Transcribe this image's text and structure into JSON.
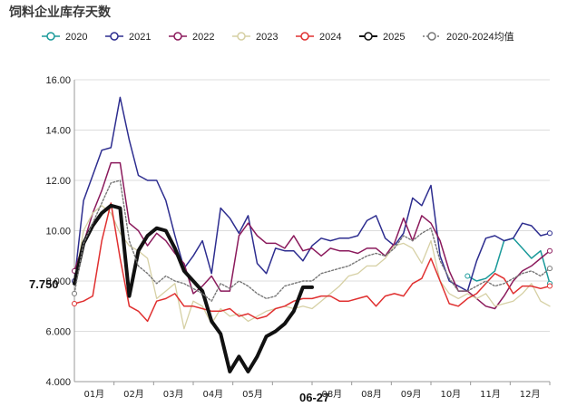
{
  "chart_data": {
    "type": "line",
    "title": "饲料企业库存天数",
    "ylim": [
      4.0,
      16.0
    ],
    "yticks": [
      "4.000",
      "6.000",
      "8.000",
      "10.00",
      "12.00",
      "14.00",
      "16.00"
    ],
    "xticks": [
      "01月",
      "02月",
      "03月",
      "04月",
      "05月",
      "",
      "08月",
      "08月",
      "09月",
      "10月",
      "11月",
      "12月"
    ],
    "xlim": [
      0,
      52
    ],
    "grid": "horizontal",
    "legend_position": "top",
    "last_value_label": "7.750",
    "date_label": "06-27",
    "series": [
      {
        "name": "2020",
        "color": "#1a9a9a",
        "width": 1.5,
        "dash": "",
        "marker": true,
        "x": [
          43,
          44,
          45,
          46,
          47,
          48,
          49,
          50,
          51,
          52
        ],
        "y": [
          8.2,
          8.0,
          8.1,
          8.4,
          9.6,
          9.7,
          9.3,
          8.9,
          9.2,
          7.9
        ]
      },
      {
        "name": "2021",
        "color": "#2d2d8f",
        "width": 1.5,
        "dash": "",
        "marker": true,
        "x": [
          0,
          1,
          2,
          3,
          4,
          5,
          6,
          7,
          8,
          9,
          10,
          11,
          12,
          13,
          14,
          15,
          16,
          17,
          18,
          19,
          20,
          21,
          22,
          23,
          24,
          25,
          26,
          27,
          28,
          29,
          30,
          31,
          32,
          33,
          34,
          35,
          36,
          37,
          38,
          39,
          40,
          41,
          42,
          43,
          44,
          45,
          46,
          47,
          48,
          49,
          50,
          51,
          52
        ],
        "y": [
          8.0,
          11.2,
          12.2,
          13.2,
          13.3,
          15.3,
          13.6,
          12.2,
          12.0,
          12.0,
          11.2,
          9.8,
          8.5,
          9.0,
          9.6,
          8.3,
          10.9,
          10.5,
          9.9,
          10.6,
          8.7,
          8.3,
          9.3,
          9.2,
          9.2,
          8.8,
          9.4,
          9.7,
          9.6,
          9.7,
          9.7,
          9.8,
          10.4,
          10.6,
          9.7,
          9.4,
          9.9,
          11.3,
          11.0,
          11.8,
          9.0,
          8.0,
          7.8,
          7.6,
          8.8,
          9.7,
          9.8,
          9.6,
          9.7,
          10.3,
          10.2,
          9.8,
          9.9
        ]
      },
      {
        "name": "2022",
        "color": "#8b1a5c",
        "width": 1.5,
        "dash": "",
        "marker": true,
        "x": [
          0,
          1,
          2,
          3,
          4,
          5,
          6,
          7,
          8,
          9,
          10,
          11,
          12,
          13,
          14,
          15,
          16,
          17,
          18,
          19,
          20,
          21,
          22,
          23,
          24,
          25,
          26,
          27,
          28,
          29,
          30,
          31,
          32,
          33,
          34,
          35,
          36,
          37,
          38,
          39,
          40,
          41,
          42,
          43,
          44,
          45,
          46,
          47,
          48,
          49,
          50,
          51,
          52
        ],
        "y": [
          8.4,
          9.5,
          10.7,
          11.6,
          12.7,
          12.7,
          10.3,
          10.0,
          9.4,
          9.9,
          9.6,
          9.1,
          8.7,
          7.5,
          7.8,
          8.2,
          7.6,
          7.6,
          9.8,
          10.3,
          9.8,
          9.5,
          9.5,
          9.3,
          9.8,
          9.2,
          9.3,
          9.0,
          9.3,
          9.2,
          9.2,
          9.1,
          9.3,
          9.3,
          9.0,
          9.5,
          10.5,
          9.6,
          10.6,
          10.3,
          9.6,
          8.4,
          7.6,
          7.6,
          7.3,
          7.0,
          6.9,
          7.4,
          8.0,
          8.4,
          8.6,
          8.9,
          9.2
        ]
      },
      {
        "name": "2023",
        "color": "#d6d0a4",
        "width": 1.3,
        "dash": "",
        "marker": false,
        "x": [
          0,
          1,
          2,
          3,
          4,
          5,
          6,
          7,
          8,
          9,
          10,
          11,
          12,
          13,
          14,
          15,
          16,
          17,
          18,
          19,
          20,
          21,
          22,
          23,
          24,
          25,
          26,
          27,
          28,
          29,
          30,
          31,
          32,
          33,
          34,
          35,
          36,
          37,
          38,
          39,
          40,
          41,
          42,
          43,
          44,
          45,
          46,
          47,
          48,
          49,
          50,
          51,
          52
        ],
        "y": [
          7.9,
          10.0,
          10.7,
          11.0,
          10.7,
          9.9,
          9.4,
          9.2,
          8.9,
          7.3,
          7.6,
          7.9,
          6.1,
          7.2,
          7.0,
          6.3,
          6.9,
          6.6,
          6.7,
          6.4,
          6.6,
          6.8,
          6.9,
          7.0,
          6.9,
          7.0,
          6.9,
          7.2,
          7.5,
          7.8,
          8.2,
          8.3,
          8.6,
          8.6,
          8.9,
          9.4,
          9.5,
          9.3,
          8.7,
          9.6,
          8.0,
          7.5,
          7.3,
          7.5,
          7.3,
          7.5,
          7.0,
          7.1,
          7.2,
          7.5,
          7.9,
          7.2,
          7.0
        ]
      },
      {
        "name": "2024",
        "color": "#e03030",
        "width": 1.5,
        "dash": "",
        "marker": true,
        "x": [
          0,
          1,
          2,
          3,
          4,
          5,
          6,
          7,
          8,
          9,
          10,
          11,
          12,
          13,
          14,
          15,
          16,
          17,
          18,
          19,
          20,
          21,
          22,
          23,
          24,
          25,
          26,
          27,
          28,
          29,
          30,
          31,
          32,
          33,
          34,
          35,
          36,
          37,
          38,
          39,
          40,
          41,
          42,
          43,
          44,
          45,
          46,
          47,
          48,
          49,
          50,
          51,
          52
        ],
        "y": [
          7.1,
          7.2,
          7.4,
          9.6,
          11.1,
          8.9,
          7.0,
          6.8,
          6.4,
          7.2,
          7.3,
          7.5,
          7.0,
          7.0,
          6.9,
          6.8,
          6.8,
          6.9,
          6.6,
          6.7,
          6.5,
          6.6,
          6.9,
          7.0,
          7.2,
          7.3,
          7.3,
          7.4,
          7.4,
          7.2,
          7.2,
          7.3,
          7.4,
          7.0,
          7.4,
          7.5,
          7.4,
          7.9,
          8.1,
          8.9,
          8.0,
          7.1,
          7.0,
          7.3,
          7.5,
          7.9,
          8.3,
          8.1,
          7.5,
          7.8,
          7.8,
          7.7,
          7.8
        ]
      },
      {
        "name": "2025",
        "color": "#111111",
        "width": 4,
        "dash": "",
        "marker": false,
        "x": [
          0,
          1,
          2,
          3,
          4,
          5,
          6,
          7,
          8,
          9,
          10,
          11,
          12,
          13,
          14,
          15,
          16,
          17,
          18,
          19,
          20,
          21,
          22,
          23,
          24,
          25,
          26
        ],
        "y": [
          7.9,
          9.5,
          10.2,
          10.7,
          11.0,
          10.9,
          7.4,
          9.2,
          9.8,
          10.1,
          10.0,
          9.3,
          8.4,
          8.0,
          7.6,
          6.4,
          5.9,
          4.4,
          5.0,
          4.4,
          5.0,
          5.8,
          6.0,
          6.3,
          6.8,
          7.75,
          7.75
        ]
      },
      {
        "name": "2020-2024均值",
        "color": "#777777",
        "width": 1.4,
        "dash": "2,2",
        "marker": true,
        "x": [
          0,
          1,
          2,
          3,
          4,
          5,
          6,
          7,
          8,
          9,
          10,
          11,
          12,
          13,
          14,
          15,
          16,
          17,
          18,
          19,
          20,
          21,
          22,
          23,
          24,
          25,
          26,
          27,
          28,
          29,
          30,
          31,
          32,
          33,
          34,
          35,
          36,
          37,
          38,
          39,
          40,
          41,
          42,
          43,
          44,
          45,
          46,
          47,
          48,
          49,
          50,
          51,
          52
        ],
        "y": [
          7.5,
          9.5,
          10.3,
          11.1,
          11.9,
          12.0,
          9.6,
          8.6,
          8.3,
          7.9,
          8.2,
          8.0,
          7.9,
          7.7,
          7.5,
          7.2,
          7.9,
          7.7,
          8.0,
          7.8,
          7.5,
          7.3,
          7.4,
          7.8,
          7.9,
          8.0,
          8.0,
          8.3,
          8.4,
          8.5,
          8.6,
          8.8,
          9.0,
          9.1,
          9.0,
          9.3,
          9.8,
          9.6,
          9.9,
          10.1,
          8.8,
          8.1,
          7.6,
          7.6,
          7.8,
          8.0,
          7.8,
          7.9,
          8.1,
          8.3,
          8.4,
          8.2,
          8.5
        ]
      }
    ]
  }
}
